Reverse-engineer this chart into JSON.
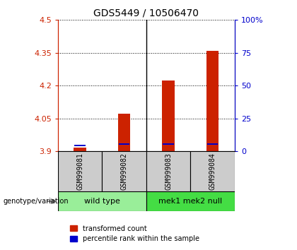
{
  "title": "GDS5449 / 10506470",
  "samples": [
    "GSM999081",
    "GSM999082",
    "GSM999083",
    "GSM999084"
  ],
  "groups": [
    {
      "label": "wild type",
      "indices": [
        0,
        1
      ]
    },
    {
      "label": "mek1 mek2 null",
      "indices": [
        2,
        3
      ]
    }
  ],
  "red_values": [
    3.916,
    4.073,
    4.222,
    4.36
  ],
  "blue_values": [
    3.922,
    3.928,
    3.93,
    3.928
  ],
  "ylim_left": [
    3.9,
    4.5
  ],
  "ylim_right": [
    0,
    100
  ],
  "yticks_left": [
    3.9,
    4.05,
    4.2,
    4.35,
    4.5
  ],
  "ytick_labels_left": [
    "3.9",
    "4.05",
    "4.2",
    "4.35",
    "4.5"
  ],
  "yticks_right": [
    0,
    25,
    50,
    75,
    100
  ],
  "ytick_labels_right": [
    "0",
    "25",
    "50",
    "75",
    "100%"
  ],
  "baseline": 3.9,
  "red_color": "#cc2200",
  "blue_color": "#0000cc",
  "bar_width": 0.28,
  "blue_bar_height": 0.007,
  "gray_color": "#cccccc",
  "green_color_wt": "#99ee99",
  "green_color_mut": "#44dd44",
  "legend_items": [
    "transformed count",
    "percentile rank within the sample"
  ],
  "genotype_label": "genotype/variation"
}
